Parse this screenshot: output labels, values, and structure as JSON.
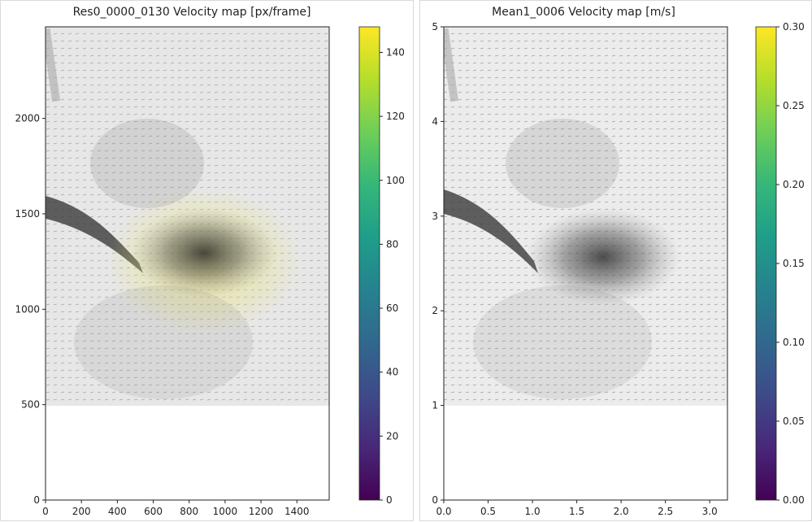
{
  "chart_data": [
    {
      "type": "heatmap",
      "title": "Res0_0000_0130   Velocity map [px/frame]",
      "xlabel": "",
      "ylabel": "",
      "xlim": [
        0,
        1580
      ],
      "ylim": [
        0,
        2480
      ],
      "x_ticks": [
        0,
        200,
        400,
        600,
        800,
        1000,
        1200,
        1400
      ],
      "y_ticks": [
        0,
        500,
        1000,
        1500,
        2000
      ],
      "x_tick_labels": [
        "0",
        "200",
        "400",
        "600",
        "800",
        "1000",
        "1200",
        "1400"
      ],
      "y_tick_labels": [
        "0",
        "500",
        "1000",
        "1500",
        "2000"
      ],
      "colorbar": {
        "cmap": "viridis",
        "range": [
          0,
          148
        ],
        "ticks": [
          0,
          20,
          40,
          60,
          80,
          100,
          120,
          140
        ],
        "tick_labels": [
          "0",
          "20",
          "40",
          "60",
          "80",
          "100",
          "120",
          "140"
        ]
      },
      "background_image": "grayscale flow image with velocity vectors",
      "image_extent_y_min": 500,
      "vector_magnitude_description": "high (yellow) vectors concentrated in central plume"
    },
    {
      "type": "heatmap",
      "title": "Mean1_0006   Velocity map  [m/s]",
      "xlabel": "",
      "ylabel": "",
      "xlim": [
        0,
        3.2
      ],
      "ylim": [
        0,
        5
      ],
      "x_ticks": [
        0.0,
        0.5,
        1.0,
        1.5,
        2.0,
        2.5,
        3.0
      ],
      "y_ticks": [
        0,
        1,
        2,
        3,
        4,
        5
      ],
      "x_tick_labels": [
        "0.0",
        "0.5",
        "1.0",
        "1.5",
        "2.0",
        "2.5",
        "3.0"
      ],
      "y_tick_labels": [
        "0",
        "1",
        "2",
        "3",
        "4",
        "5"
      ],
      "colorbar": {
        "cmap": "viridis",
        "range": [
          0,
          0.3
        ],
        "ticks": [
          0.0,
          0.05,
          0.1,
          0.15,
          0.2,
          0.25,
          0.3
        ],
        "tick_labels": [
          "0.00",
          "0.05",
          "0.10",
          "0.15",
          "0.20",
          "0.25",
          "0.30"
        ]
      },
      "background_image": "grayscale flow image with velocity vectors",
      "image_extent_y_min": 1,
      "vector_magnitude_description": "mostly low (dark) vectors, faint green/yellow at plume edges"
    }
  ],
  "colors": {
    "viridis_stops": [
      "#440154",
      "#482878",
      "#3e4a89",
      "#31688e",
      "#26828e",
      "#1f9e89",
      "#35b779",
      "#6ece58",
      "#b5de2b",
      "#fde725"
    ],
    "image_background": "#eeeeee",
    "plume_dark": "#3a3a3a",
    "vector_high": "#e6e04a",
    "vector_mid": "#8fd0a0"
  }
}
